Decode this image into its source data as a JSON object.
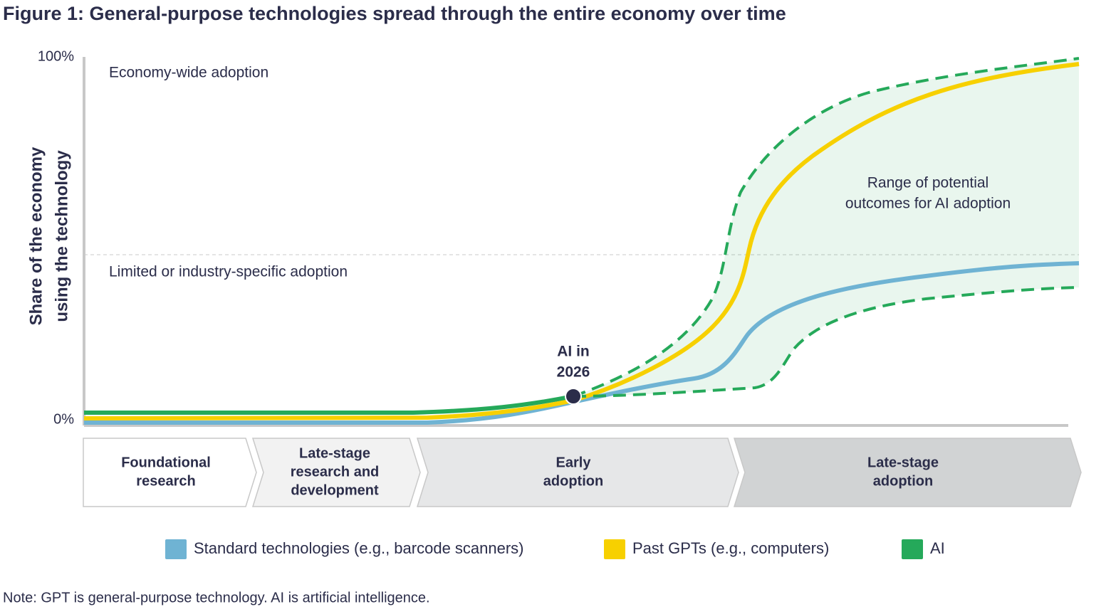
{
  "chart_data": {
    "type": "line",
    "title": "Figure 1: General-purpose technologies spread through the entire economy over time",
    "ylabel": [
      "Share of the economy",
      "using the technology"
    ],
    "ylim": [
      0,
      100
    ],
    "yticks": [
      {
        "value": 0,
        "label": "0%"
      },
      {
        "value": 100,
        "label": "100%"
      }
    ],
    "zones": [
      "Economy-wide adoption",
      "Limited or industry-specific adoption"
    ],
    "range_label": [
      "Range of potential",
      "outcomes for AI adoption"
    ],
    "marker_label": [
      "AI in",
      "2026"
    ],
    "stages": [
      [
        "Foundational",
        "research"
      ],
      [
        "Late-stage",
        "research and",
        "development"
      ],
      [
        "Early",
        "adoption"
      ],
      [
        "Late-stage",
        "adoption"
      ]
    ],
    "series": [
      {
        "name": "Standard technologies (e.g., barcode scanners)",
        "color": "#6fb3d3"
      },
      {
        "name": "Past GPTs (e.g., computers)",
        "color": "#f7d000"
      },
      {
        "name": "AI",
        "color": "#25a95a"
      }
    ],
    "note": "Note: GPT is general-purpose technology. AI is artificial intelligence."
  }
}
